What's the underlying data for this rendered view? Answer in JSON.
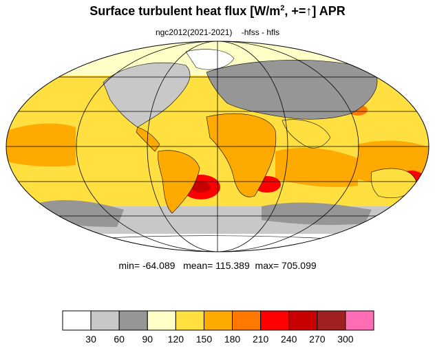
{
  "title": {
    "main": "Surface turbulent heat flux [W/m",
    "sup": "2",
    "rest": ", +=↑]  APR"
  },
  "subtitle": "ngc2012(2021-2021)    -hfss - hfls",
  "stats": {
    "text": "min= -64.089   mean= 115.389  max= 705.099",
    "min": -64.089,
    "mean": 115.389,
    "max": 705.099
  },
  "colorbar": {
    "tick_labels": [
      "30",
      "60",
      "90",
      "120",
      "150",
      "180",
      "210",
      "240",
      "270",
      "300"
    ],
    "colors": [
      "#ffffff",
      "#c8c8c8",
      "#969696",
      "#ffffc8",
      "#ffe040",
      "#ffaa00",
      "#ff7800",
      "#ff0000",
      "#c80000",
      "#a02020",
      "#ff6eb4"
    ]
  },
  "map": {
    "projection": "Mollweide",
    "graticule": true,
    "land_fill": "#ffaa00",
    "ocean_fill": "#ffe040"
  }
}
